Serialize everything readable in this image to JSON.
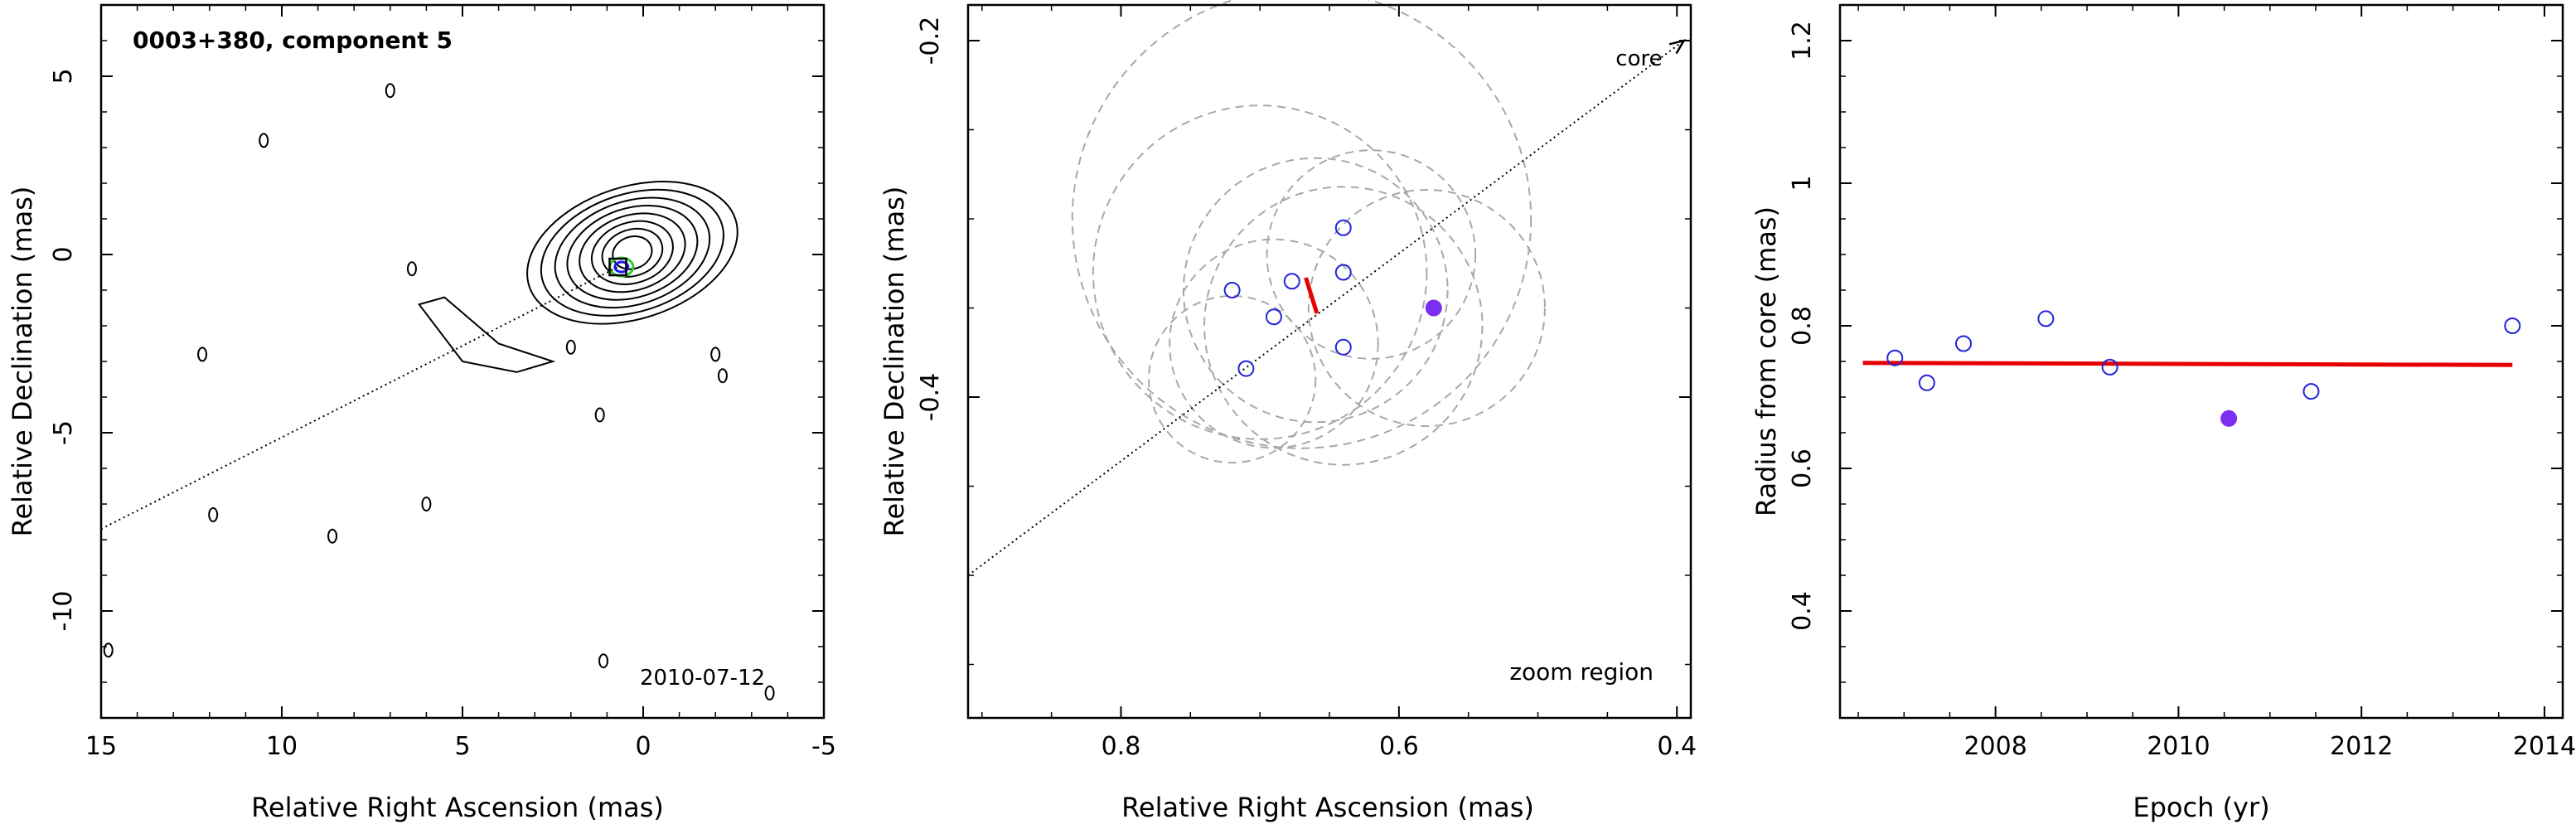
{
  "chart_data": [
    {
      "type": "contour",
      "panel": "vlbi-image",
      "title": "0003+380, component 5",
      "date_label": "2010-07-12",
      "xlabel": "Relative Right Ascension (mas)",
      "ylabel": "Relative Declination (mas)",
      "xlim": [
        15,
        -5
      ],
      "ylim": [
        -13,
        7
      ],
      "xticks": [
        15,
        10,
        5,
        0,
        -5
      ],
      "yticks": [
        5,
        0,
        -5,
        -10
      ],
      "component_marker": {
        "x": 0.7,
        "y": -0.35
      },
      "jet_direction_line": {
        "x": [
          15,
          0.7
        ],
        "y": [
          -7.7,
          -0.35
        ]
      },
      "contours": {
        "main": {
          "center": [
            0.3,
            0.05
          ],
          "rx": [
            0.55,
            0.85,
            1.15,
            1.5,
            1.85,
            2.2,
            2.6,
            3.0
          ],
          "ry": [
            0.45,
            0.65,
            0.85,
            1.05,
            1.25,
            1.45,
            1.65,
            1.85
          ]
        },
        "jet_base": {
          "points": [
            [
              2.5,
              -3.0
            ],
            [
              4.0,
              -2.5
            ],
            [
              5.5,
              -1.2
            ],
            [
              6.2,
              -1.4
            ],
            [
              5.0,
              -3.0
            ],
            [
              3.5,
              -3.3
            ]
          ]
        },
        "small_islands": [
          [
            10.5,
            3.2
          ],
          [
            7.0,
            4.6
          ],
          [
            6.4,
            -0.4
          ],
          [
            12.2,
            -2.8
          ],
          [
            11.9,
            -7.3
          ],
          [
            8.6,
            -7.9
          ],
          [
            6.0,
            -7.0
          ],
          [
            2.0,
            -2.6
          ],
          [
            1.2,
            -4.5
          ],
          [
            -2.0,
            -2.8
          ],
          [
            -2.2,
            -3.4
          ],
          [
            14.8,
            -11.1
          ],
          [
            -3.5,
            -12.3
          ],
          [
            1.1,
            -11.4
          ]
        ],
        "colored_inner": {
          "center": [
            0.6,
            -0.35
          ],
          "green": "#33cc33",
          "blue": "#1a1aff"
        }
      }
    },
    {
      "type": "scatter",
      "panel": "zoom-region",
      "label": "zoom region",
      "xlabel": "Relative Right Ascension (mas)",
      "ylabel": "Relative Declination (mas)",
      "xlim": [
        0.91,
        0.39
      ],
      "ylim": [
        -0.58,
        -0.18
      ],
      "xticks": [
        0.8,
        0.6,
        0.4
      ],
      "yticks": [
        -0.2,
        -0.4
      ],
      "core_label": "core",
      "core_arrow": {
        "x": [
          0.91,
          0.395
        ],
        "y": [
          -0.5,
          -0.2
        ]
      },
      "points": [
        {
          "x": 0.72,
          "y": -0.34,
          "filled": false
        },
        {
          "x": 0.71,
          "y": -0.384,
          "filled": false
        },
        {
          "x": 0.69,
          "y": -0.355,
          "filled": false
        },
        {
          "x": 0.677,
          "y": -0.335,
          "filled": false
        },
        {
          "x": 0.64,
          "y": -0.305,
          "filled": false
        },
        {
          "x": 0.64,
          "y": -0.33,
          "filled": false
        },
        {
          "x": 0.64,
          "y": -0.372,
          "filled": false
        },
        {
          "x": 0.575,
          "y": -0.35,
          "filled": true
        }
      ],
      "error_circles": [
        {
          "x": 0.67,
          "y": -0.3,
          "r": 0.165
        },
        {
          "x": 0.7,
          "y": -0.33,
          "r": 0.12
        },
        {
          "x": 0.64,
          "y": -0.36,
          "r": 0.1
        },
        {
          "x": 0.58,
          "y": -0.35,
          "r": 0.085
        },
        {
          "x": 0.62,
          "y": -0.32,
          "r": 0.075
        },
        {
          "x": 0.72,
          "y": -0.39,
          "r": 0.06
        },
        {
          "x": 0.69,
          "y": -0.37,
          "r": 0.075
        },
        {
          "x": 0.66,
          "y": -0.34,
          "r": 0.095
        }
      ],
      "fit_segment": {
        "x": [
          0.667,
          0.659
        ],
        "y": [
          -0.333,
          -0.353
        ],
        "color": "#e60000"
      },
      "marker_color": "#2323d9",
      "filled_color": "#7b2ff2"
    },
    {
      "type": "scatter",
      "panel": "radius-vs-epoch",
      "xlabel": "Epoch (yr)",
      "ylabel": "Radius from core (mas)",
      "xlim": [
        2006.3,
        2014.2
      ],
      "ylim": [
        0.25,
        1.25
      ],
      "xticks": [
        2008,
        2010,
        2012,
        2014
      ],
      "yticks": [
        0.4,
        0.6,
        0.8,
        1.0,
        1.2
      ],
      "ytick_labels": [
        "0.4",
        "0.6",
        "0.8",
        "1",
        "1.2"
      ],
      "points": [
        {
          "x": 2006.9,
          "y": 0.755,
          "filled": false
        },
        {
          "x": 2007.25,
          "y": 0.72,
          "filled": false
        },
        {
          "x": 2007.65,
          "y": 0.775,
          "filled": false
        },
        {
          "x": 2008.55,
          "y": 0.81,
          "filled": false
        },
        {
          "x": 2009.25,
          "y": 0.742,
          "filled": false
        },
        {
          "x": 2010.55,
          "y": 0.67,
          "filled": true
        },
        {
          "x": 2011.45,
          "y": 0.708,
          "filled": false
        },
        {
          "x": 2013.65,
          "y": 0.8,
          "filled": false
        }
      ],
      "fit_line": {
        "x": [
          2006.55,
          2013.65
        ],
        "y": [
          0.748,
          0.745
        ],
        "color": "#e60000"
      },
      "marker_color": "#2323d9",
      "filled_color": "#7b2ff2"
    }
  ]
}
